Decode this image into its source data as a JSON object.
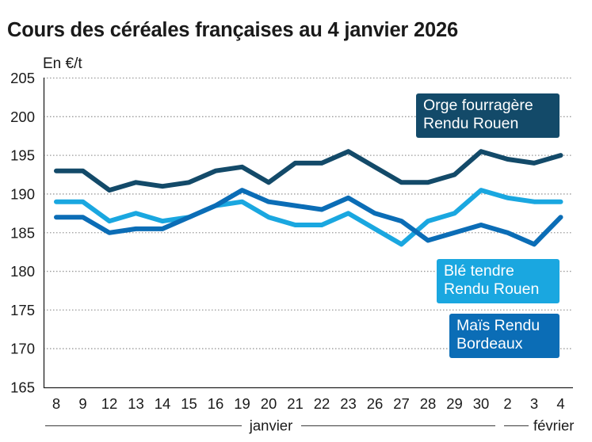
{
  "chart_data": {
    "type": "line",
    "title": "Cours des céréales françaises au 4 janvier 2026",
    "ylabel": "En €/t",
    "xlabel": "",
    "ylim": [
      165,
      205
    ],
    "yticks": [
      "165",
      "170",
      "175",
      "180",
      "185",
      "190",
      "195",
      "200",
      "205"
    ],
    "grid": true,
    "categories": [
      "8",
      "9",
      "12",
      "13",
      "14",
      "15",
      "16",
      "19",
      "20",
      "21",
      "22",
      "23",
      "26",
      "27",
      "28",
      "29",
      "30",
      "2",
      "3",
      "4"
    ],
    "month_groups": [
      {
        "label": "janvier",
        "start_index": 0,
        "end_index": 16
      },
      {
        "label": "février",
        "start_index": 17,
        "end_index": 19
      }
    ],
    "series": [
      {
        "name": "Orge fourragère Rendu Rouen",
        "label_lines": [
          "Orge fourragère",
          "Rendu Rouen"
        ],
        "color": "#134a69",
        "values": [
          193,
          193,
          190.5,
          191.5,
          191,
          191.5,
          193,
          193.5,
          191.5,
          194,
          194,
          195.5,
          193.5,
          191.5,
          191.5,
          192.5,
          195.5,
          194.5,
          194,
          195
        ]
      },
      {
        "name": "Blé tendre Rendu Rouen",
        "label_lines": [
          "Blé tendre",
          "Rendu Rouen"
        ],
        "color": "#1aa7e0",
        "values": [
          189,
          189,
          186.5,
          187.5,
          186.5,
          187,
          188.5,
          189,
          187,
          186,
          186,
          187.5,
          185.5,
          183.5,
          186.5,
          187.5,
          190.5,
          189.5,
          189,
          189
        ]
      },
      {
        "name": "Maïs Rendu Bordeaux",
        "label_lines": [
          "Maïs Rendu",
          "Bordeaux"
        ],
        "color": "#0b6db6",
        "values": [
          187,
          187,
          185,
          185.5,
          185.5,
          187,
          188.5,
          190.5,
          189,
          188.5,
          188,
          189.5,
          187.5,
          186.5,
          184,
          185,
          186,
          185,
          183.5,
          187
        ]
      }
    ]
  }
}
